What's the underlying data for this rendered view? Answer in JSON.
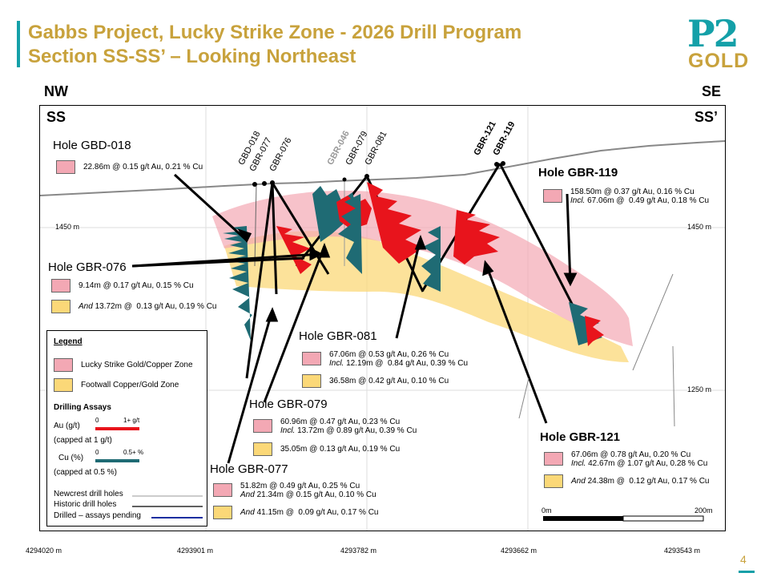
{
  "header": {
    "title_line1": "Gabbs Project, Lucky Strike Zone - 2026 Drill Program",
    "title_line2": "Section SS-SS’ – Looking Northeast",
    "logo_top": "P2",
    "logo_bottom": "GOLD"
  },
  "directions": {
    "left": "NW",
    "right": "SE",
    "section_left": "SS",
    "section_right": "SS’"
  },
  "elevations": {
    "upper": "1450 m",
    "lower": "1250 m"
  },
  "eastings": [
    "4294020 m",
    "4293901 m",
    "4293782 m",
    "4293662 m",
    "4293543 m"
  ],
  "scale": {
    "start": "0m",
    "end": "200m"
  },
  "hole_labels": {
    "gbd018": "GBD-018",
    "gbr077": "GBR-077",
    "gbr076": "GBR-076",
    "gbr046": "GBR-046",
    "gbr079": "GBR-079",
    "gbr081": "GBR-081",
    "gbr121": "GBR-121",
    "gbr119": "GBR-119"
  },
  "callouts": {
    "gbd018": {
      "title": "Hole GBD-018",
      "line1": "22.86m @  0.15 g/t Au, 0.21 % Cu"
    },
    "gbr076": {
      "title": "Hole GBR-076",
      "line1": "9.14m @  0.17 g/t Au, 0.15 % Cu",
      "line2_prefix": "And",
      "line2": " 13.72m @  0.13 g/t Au, 0.19 % Cu"
    },
    "gbr119": {
      "title": "Hole GBR-119",
      "line1": "158.50m @  0.37 g/t Au, 0.16 % Cu",
      "line2_prefix": "Incl.",
      "line2": " 67.06m @  0.49 g/t Au, 0.18 % Cu"
    },
    "gbr081": {
      "title": "Hole GBR-081",
      "line1": "67.06m @  0.53 g/t Au, 0.26 % Cu",
      "line2_prefix": "Incl.",
      "line2": " 12.19m @  0.84 g/t Au, 0.39 % Cu",
      "line3": "36.58m @  0.42 g/t Au, 0.10 % Cu"
    },
    "gbr079": {
      "title": "Hole GBR-079",
      "line1": "60.96m @  0.47 g/t Au, 0.23 % Cu",
      "line2_prefix": "Incl.",
      "line2": " 13.72m @ 0.89 g/t Au, 0.39 % Cu",
      "line3": "35.05m @  0.13 g/t Au, 0.19 % Cu"
    },
    "gbr077": {
      "title": "Hole GBR-077",
      "line1": "51.82m @  0.49 g/t Au, 0.25 % Cu",
      "line2_prefix": "And",
      "line2": " 21.34m @ 0.15 g/t Au, 0.10 % Cu",
      "line3_prefix": "And",
      "line3": " 41.15m @  0.09 g/t Au, 0.17 % Cu"
    },
    "gbr121": {
      "title": "Hole GBR-121",
      "line1": "67.06m @  0.78 g/t Au, 0.20 % Cu",
      "line2_prefix": "Incl.",
      "line2": " 42.67m @ 1.07 g/t Au, 0.28 % Cu",
      "line3_prefix": "And",
      "line3": " 24.38m @  0.12 g/t Au, 0.17 % Cu"
    }
  },
  "legend": {
    "title": "Legend",
    "zone1": "Lucky Strike Gold/Copper Zone",
    "zone2": "Footwall Copper/Gold Zone",
    "assays_title": "Drilling Assays",
    "au_label": "Au (g/t)",
    "au_min": "0",
    "au_max": "1+ g/t",
    "au_cap": "(capped at 1 g/t)",
    "cu_label": "Cu (%)",
    "cu_min": "0",
    "cu_max": "0.5+ %",
    "cu_cap": "(capped at 0.5 %)",
    "newcrest": "Newcrest drill holes",
    "historic": "Historic drill holes",
    "pending": "Drilled – assays pending"
  },
  "page_number": "4",
  "colors": {
    "teal": "#14a0a8",
    "gold": "#c8a23c",
    "au": "#e8141c",
    "cu": "#1f6b74",
    "zone_pink": "#f3a8b4",
    "zone_yellow": "#fbd878"
  }
}
